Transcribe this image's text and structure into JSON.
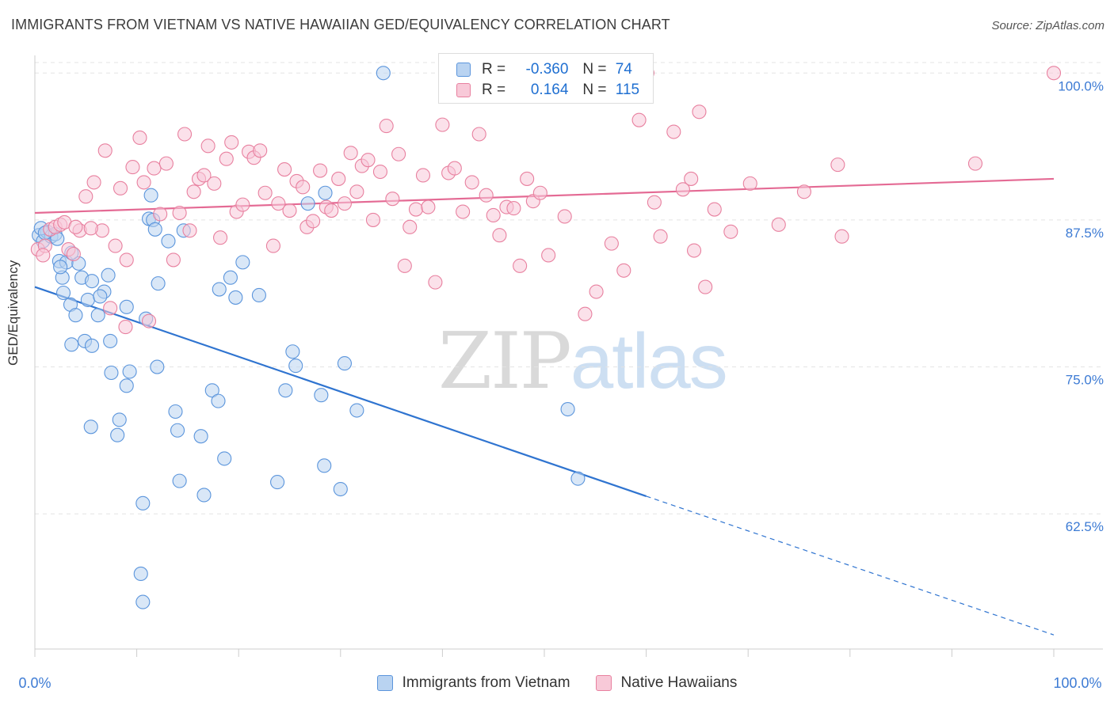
{
  "title": "IMMIGRANTS FROM VIETNAM VS NATIVE HAWAIIAN GED/EQUIVALENCY CORRELATION CHART",
  "source": "Source: ZipAtlas.com",
  "watermark": {
    "zip": "ZIP",
    "atlas": "atlas"
  },
  "legend_top": {
    "rows": [
      {
        "r_label": "R =",
        "r_value": "-0.360",
        "n_label": "N =",
        "n_value": "74"
      },
      {
        "r_label": "R =",
        "r_value": "0.164",
        "n_label": "N =",
        "n_value": "115"
      }
    ]
  },
  "colors": {
    "blue_fill": "#b9d3f1",
    "blue_stroke": "#5b95dc",
    "blue_line": "#2f74d0",
    "pink_fill": "#f8c9d8",
    "pink_stroke": "#e8809f",
    "pink_line": "#e46a94",
    "tick_label": "#3d7bd4",
    "grid": "#e3e3e3"
  },
  "chart_data": {
    "type": "scatter",
    "title": "IMMIGRANTS FROM VIETNAM VS NATIVE HAWAIIAN GED/EQUIVALENCY CORRELATION CHART",
    "xlabel": "",
    "ylabel": "GED/Equivalency",
    "xlim": [
      0,
      100
    ],
    "ylim": [
      51,
      101.5
    ],
    "x_tick_labels": [
      "0.0%",
      "100.0%"
    ],
    "y_ticks": [
      62.5,
      75.0,
      87.5,
      100.0
    ],
    "y_tick_labels": [
      "62.5%",
      "75.0%",
      "87.5%",
      "100.0%"
    ],
    "grid": true,
    "legend_position": "bottom",
    "series": [
      {
        "name": "Immigrants from Vietnam",
        "color_key": "blue",
        "trend": {
          "x": [
            0,
            60
          ],
          "y": [
            81.8,
            64.0
          ],
          "dashed_to": [
            100,
            52.2
          ]
        },
        "points": [
          [
            0.4,
            86.2
          ],
          [
            0.8,
            85.7
          ],
          [
            1.2,
            86.5
          ],
          [
            1.6,
            86.1
          ],
          [
            2.0,
            86.3
          ],
          [
            2.2,
            85.9
          ],
          [
            0.6,
            86.8
          ],
          [
            1.0,
            86.4
          ],
          [
            2.4,
            84.0
          ],
          [
            2.7,
            82.6
          ],
          [
            3.1,
            83.9
          ],
          [
            2.8,
            81.3
          ],
          [
            3.5,
            80.3
          ],
          [
            4.0,
            79.4
          ],
          [
            4.6,
            82.6
          ],
          [
            5.2,
            80.7
          ],
          [
            5.6,
            82.3
          ],
          [
            6.2,
            79.4
          ],
          [
            6.8,
            81.4
          ],
          [
            7.5,
            74.5
          ],
          [
            8.3,
            70.5
          ],
          [
            9.0,
            73.4
          ],
          [
            3.6,
            76.9
          ],
          [
            4.9,
            77.2
          ],
          [
            5.6,
            76.8
          ],
          [
            7.4,
            77.2
          ],
          [
            9.3,
            74.6
          ],
          [
            10.9,
            79.1
          ],
          [
            12.0,
            75.0
          ],
          [
            13.8,
            71.2
          ],
          [
            14.0,
            69.6
          ],
          [
            16.3,
            69.1
          ],
          [
            17.4,
            73.0
          ],
          [
            18.0,
            72.1
          ],
          [
            18.6,
            67.2
          ],
          [
            19.7,
            80.9
          ],
          [
            22.0,
            81.1
          ],
          [
            24.6,
            73.0
          ],
          [
            25.3,
            76.3
          ],
          [
            25.6,
            75.1
          ],
          [
            28.1,
            72.6
          ],
          [
            28.4,
            66.6
          ],
          [
            30.0,
            64.6
          ],
          [
            30.4,
            75.3
          ],
          [
            31.6,
            71.3
          ],
          [
            16.6,
            64.1
          ],
          [
            23.8,
            65.2
          ],
          [
            14.2,
            65.3
          ],
          [
            8.1,
            69.2
          ],
          [
            5.5,
            69.9
          ],
          [
            10.6,
            63.4
          ],
          [
            10.4,
            57.4
          ],
          [
            10.6,
            55.0
          ],
          [
            53.3,
            65.5
          ],
          [
            52.3,
            71.4
          ],
          [
            34.2,
            100.0
          ],
          [
            26.8,
            88.9
          ],
          [
            28.5,
            89.8
          ],
          [
            11.2,
            87.6
          ],
          [
            11.6,
            87.5
          ],
          [
            11.8,
            86.7
          ],
          [
            13.1,
            85.7
          ],
          [
            14.6,
            86.6
          ],
          [
            11.4,
            89.6
          ],
          [
            20.4,
            83.9
          ],
          [
            18.1,
            81.6
          ],
          [
            19.2,
            82.6
          ],
          [
            7.2,
            82.8
          ],
          [
            6.4,
            81.0
          ],
          [
            4.3,
            83.8
          ],
          [
            3.6,
            84.7
          ],
          [
            2.5,
            83.5
          ],
          [
            9.0,
            80.1
          ],
          [
            12.1,
            82.1
          ]
        ]
      },
      {
        "name": "Native Hawaiians",
        "color_key": "pink",
        "trend": {
          "x": [
            0,
            100
          ],
          "y": [
            88.1,
            91.0
          ]
        },
        "points": [
          [
            0.3,
            85.0
          ],
          [
            1.0,
            85.3
          ],
          [
            1.5,
            86.7
          ],
          [
            2.0,
            86.9
          ],
          [
            2.5,
            87.1
          ],
          [
            3.3,
            85.0
          ],
          [
            3.8,
            84.6
          ],
          [
            4.4,
            86.6
          ],
          [
            5.0,
            89.5
          ],
          [
            5.8,
            90.7
          ],
          [
            6.6,
            86.6
          ],
          [
            6.9,
            93.4
          ],
          [
            7.9,
            85.3
          ],
          [
            8.4,
            90.2
          ],
          [
            9.0,
            84.1
          ],
          [
            9.6,
            92.0
          ],
          [
            10.3,
            94.5
          ],
          [
            10.7,
            90.7
          ],
          [
            11.7,
            91.9
          ],
          [
            12.3,
            88.0
          ],
          [
            12.9,
            92.3
          ],
          [
            13.6,
            84.1
          ],
          [
            14.2,
            88.1
          ],
          [
            14.7,
            94.8
          ],
          [
            15.2,
            86.6
          ],
          [
            15.6,
            89.9
          ],
          [
            16.1,
            91.0
          ],
          [
            16.6,
            91.3
          ],
          [
            17.0,
            93.8
          ],
          [
            17.6,
            90.6
          ],
          [
            18.2,
            86.0
          ],
          [
            18.8,
            92.7
          ],
          [
            19.3,
            94.1
          ],
          [
            19.8,
            88.2
          ],
          [
            20.4,
            88.8
          ],
          [
            21.0,
            93.3
          ],
          [
            21.5,
            92.8
          ],
          [
            22.1,
            93.4
          ],
          [
            22.6,
            89.8
          ],
          [
            23.4,
            85.3
          ],
          [
            23.9,
            88.9
          ],
          [
            24.5,
            91.8
          ],
          [
            25.0,
            88.3
          ],
          [
            25.7,
            90.8
          ],
          [
            26.3,
            90.3
          ],
          [
            26.7,
            86.9
          ],
          [
            27.3,
            87.4
          ],
          [
            28.0,
            91.7
          ],
          [
            28.6,
            88.6
          ],
          [
            29.1,
            88.3
          ],
          [
            29.8,
            91.0
          ],
          [
            30.4,
            88.9
          ],
          [
            31.0,
            93.2
          ],
          [
            31.6,
            89.9
          ],
          [
            32.1,
            92.1
          ],
          [
            32.7,
            92.6
          ],
          [
            33.2,
            87.5
          ],
          [
            33.9,
            91.6
          ],
          [
            34.5,
            95.5
          ],
          [
            35.1,
            89.3
          ],
          [
            35.7,
            93.1
          ],
          [
            36.3,
            83.6
          ],
          [
            36.8,
            86.9
          ],
          [
            37.4,
            88.4
          ],
          [
            38.1,
            91.3
          ],
          [
            38.6,
            88.6
          ],
          [
            39.3,
            82.2
          ],
          [
            40.0,
            95.6
          ],
          [
            40.6,
            91.5
          ],
          [
            41.2,
            91.9
          ],
          [
            42.0,
            88.2
          ],
          [
            42.9,
            90.7
          ],
          [
            43.6,
            94.8
          ],
          [
            44.3,
            89.6
          ],
          [
            45.0,
            87.9
          ],
          [
            45.6,
            86.2
          ],
          [
            46.3,
            88.6
          ],
          [
            47.0,
            88.5
          ],
          [
            47.6,
            83.6
          ],
          [
            48.3,
            91.0
          ],
          [
            48.9,
            89.1
          ],
          [
            49.6,
            89.8
          ],
          [
            50.4,
            84.5
          ],
          [
            52.0,
            87.8
          ],
          [
            54.0,
            79.5
          ],
          [
            55.1,
            81.4
          ],
          [
            56.6,
            85.5
          ],
          [
            57.8,
            83.2
          ],
          [
            59.3,
            96.0
          ],
          [
            60.1,
            100.0
          ],
          [
            60.8,
            89.0
          ],
          [
            61.4,
            86.1
          ],
          [
            62.7,
            95.0
          ],
          [
            63.6,
            90.1
          ],
          [
            64.4,
            91.0
          ],
          [
            64.7,
            84.9
          ],
          [
            65.2,
            96.7
          ],
          [
            65.8,
            81.8
          ],
          [
            66.7,
            88.4
          ],
          [
            68.3,
            86.5
          ],
          [
            70.2,
            90.6
          ],
          [
            73.0,
            87.1
          ],
          [
            75.5,
            89.9
          ],
          [
            79.2,
            86.1
          ],
          [
            78.8,
            92.2
          ],
          [
            92.3,
            92.3
          ],
          [
            100.0,
            100.0
          ],
          [
            5.5,
            86.8
          ],
          [
            7.4,
            80.0
          ],
          [
            8.9,
            78.4
          ],
          [
            11.2,
            78.9
          ],
          [
            2.9,
            87.3
          ],
          [
            4.0,
            86.9
          ],
          [
            0.8,
            84.5
          ]
        ]
      }
    ]
  }
}
